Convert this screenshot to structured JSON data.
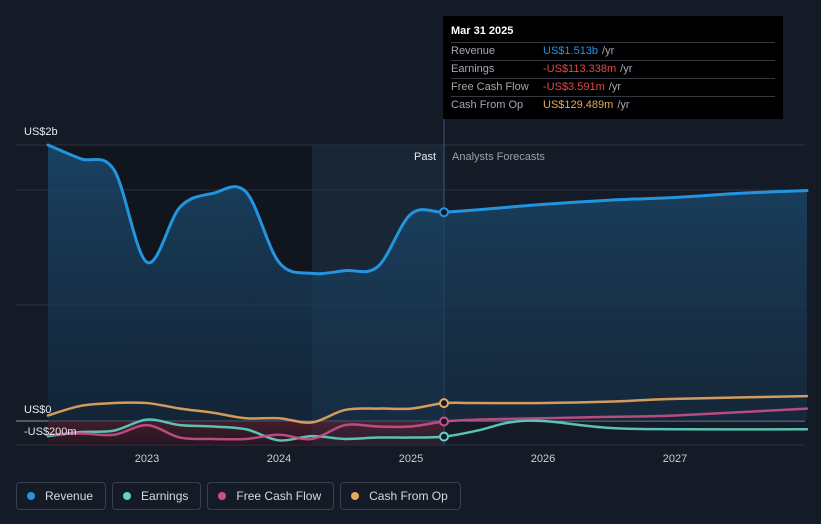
{
  "tooltip": {
    "date": "Mar 31 2025",
    "rows": [
      {
        "label": "Revenue",
        "value": "US$1.513b",
        "unit": "/yr",
        "color": "#2394df"
      },
      {
        "label": "Earnings",
        "value": "-US$113.338m",
        "unit": "/yr",
        "color": "#e64747"
      },
      {
        "label": "Free Cash Flow",
        "value": "-US$3.591m",
        "unit": "/yr",
        "color": "#e64747"
      },
      {
        "label": "Cash From Op",
        "value": "US$129.489m",
        "unit": "/yr",
        "color": "#e8a860"
      }
    ]
  },
  "labels": {
    "past": "Past",
    "forecast": "Analysts Forecasts"
  },
  "legend": [
    {
      "label": "Revenue",
      "color": "#2394df"
    },
    {
      "label": "Earnings",
      "color": "#5fd4c4"
    },
    {
      "label": "Free Cash Flow",
      "color": "#c9508a"
    },
    {
      "label": "Cash From Op",
      "color": "#e8a860"
    }
  ],
  "chart_data": {
    "type": "line",
    "y_ticks": [
      "US$2b",
      "US$0",
      "-US$200m"
    ],
    "x_ticks": [
      "2023",
      "2024",
      "2025",
      "2026",
      "2027"
    ],
    "ylim": [
      -200000000,
      2000000000
    ],
    "past_forecast_boundary": 2025.25,
    "series": [
      {
        "name": "Revenue",
        "color": "#2394df",
        "points": [
          [
            2022.25,
            2000000000.0
          ],
          [
            2022.5,
            1900000000.0
          ],
          [
            2022.75,
            1820000000.0
          ],
          [
            2023.0,
            1150000000.0
          ],
          [
            2023.25,
            1550000000.0
          ],
          [
            2023.5,
            1650000000.0
          ],
          [
            2023.75,
            1660000000.0
          ],
          [
            2024.0,
            1150000000.0
          ],
          [
            2024.25,
            1070000000.0
          ],
          [
            2024.5,
            1090000000.0
          ],
          [
            2024.75,
            1120000000.0
          ],
          [
            2025.0,
            1500000000.0
          ],
          [
            2025.25,
            1513000000.0
          ],
          [
            2025.5,
            1530000000.0
          ],
          [
            2026.0,
            1570000000.0
          ],
          [
            2026.5,
            1600000000.0
          ],
          [
            2027.0,
            1620000000.0
          ],
          [
            2027.5,
            1650000000.0
          ],
          [
            2028.0,
            1670000000.0
          ]
        ]
      },
      {
        "name": "Earnings",
        "color": "#5fd4c4",
        "points": [
          [
            2022.25,
            -110000000
          ],
          [
            2022.5,
            -80000000
          ],
          [
            2022.75,
            -70000000
          ],
          [
            2023.0,
            10000000
          ],
          [
            2023.25,
            -30000000
          ],
          [
            2023.5,
            -40000000
          ],
          [
            2023.75,
            -60000000
          ],
          [
            2024.0,
            -140000000
          ],
          [
            2024.25,
            -110000000
          ],
          [
            2024.5,
            -130000000
          ],
          [
            2024.75,
            -120000000
          ],
          [
            2025.0,
            -120000000
          ],
          [
            2025.25,
            -113338000
          ],
          [
            2025.5,
            -70000000
          ],
          [
            2025.75,
            -10000000
          ],
          [
            2026.0,
            0
          ],
          [
            2026.5,
            -50000000
          ],
          [
            2027.0,
            -60000000
          ],
          [
            2028.0,
            -60000000
          ]
        ]
      },
      {
        "name": "Free Cash Flow",
        "color": "#c9508a",
        "points": [
          [
            2022.25,
            -100000000
          ],
          [
            2022.5,
            -90000000
          ],
          [
            2022.75,
            -100000000
          ],
          [
            2023.0,
            -30000000
          ],
          [
            2023.25,
            -120000000
          ],
          [
            2023.5,
            -130000000
          ],
          [
            2023.75,
            -130000000
          ],
          [
            2024.0,
            -100000000
          ],
          [
            2024.25,
            -130000000
          ],
          [
            2024.5,
            -30000000
          ],
          [
            2024.75,
            -40000000
          ],
          [
            2025.0,
            -40000000
          ],
          [
            2025.25,
            -3591000
          ],
          [
            2025.5,
            10000000
          ],
          [
            2026.0,
            20000000
          ],
          [
            2026.5,
            30000000
          ],
          [
            2027.0,
            40000000
          ],
          [
            2028.0,
            90000000
          ]
        ]
      },
      {
        "name": "Cash From Op",
        "color": "#e8a860",
        "points": [
          [
            2022.25,
            40000000
          ],
          [
            2022.5,
            110000000
          ],
          [
            2022.75,
            130000000
          ],
          [
            2023.0,
            130000000
          ],
          [
            2023.25,
            90000000
          ],
          [
            2023.5,
            60000000
          ],
          [
            2023.75,
            20000000
          ],
          [
            2024.0,
            20000000
          ],
          [
            2024.25,
            -10000000
          ],
          [
            2024.5,
            80000000
          ],
          [
            2024.75,
            90000000
          ],
          [
            2025.0,
            90000000
          ],
          [
            2025.25,
            129489000
          ],
          [
            2025.5,
            130000000
          ],
          [
            2026.0,
            130000000
          ],
          [
            2026.5,
            140000000
          ],
          [
            2027.0,
            160000000
          ],
          [
            2028.0,
            180000000
          ]
        ]
      }
    ]
  }
}
